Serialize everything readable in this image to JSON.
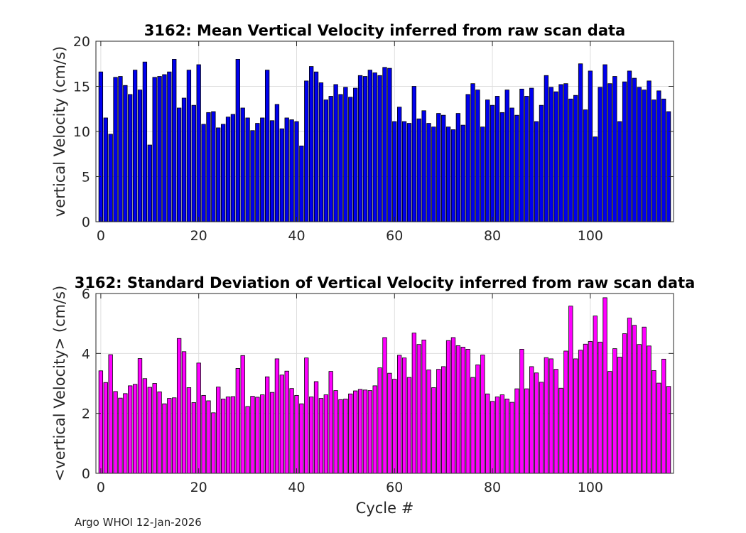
{
  "footer_text": "Argo WHOI 12-Jan-2026",
  "colors": {
    "top_bars": "#0000ee",
    "bottom_bars": "#ff00ff",
    "axis": "#262626",
    "grid": "#dedede"
  },
  "chart_data": [
    {
      "type": "bar",
      "title": "3162: Mean Vertical Velocity inferred from raw scan data",
      "xlabel": "",
      "ylabel": "vertical Velocity (cm/s)",
      "xlim": [
        -1,
        117
      ],
      "ylim": [
        0,
        20
      ],
      "xticks": [
        0,
        20,
        40,
        60,
        80,
        100
      ],
      "yticks": [
        0,
        5,
        10,
        15,
        20
      ],
      "grid": true,
      "x_start": 0,
      "values": [
        16.6,
        11.5,
        9.7,
        16.0,
        16.1,
        15.1,
        14.1,
        16.8,
        14.6,
        17.7,
        8.5,
        16.0,
        16.1,
        16.3,
        16.6,
        18.0,
        12.6,
        13.7,
        16.8,
        12.9,
        17.4,
        10.8,
        12.1,
        12.2,
        10.4,
        10.8,
        11.6,
        11.9,
        18.0,
        12.6,
        11.5,
        10.1,
        10.9,
        11.5,
        16.8,
        11.2,
        13.0,
        10.3,
        11.5,
        11.3,
        11.1,
        8.4,
        15.6,
        17.2,
        16.6,
        15.4,
        13.5,
        13.9,
        15.2,
        14.1,
        14.9,
        13.8,
        14.8,
        16.2,
        16.1,
        16.8,
        16.5,
        16.2,
        17.1,
        17.0,
        11.1,
        12.7,
        11.1,
        10.9,
        15.0,
        11.4,
        12.3,
        10.9,
        10.5,
        12.0,
        11.8,
        10.5,
        10.2,
        12.0,
        10.7,
        14.1,
        15.3,
        14.6,
        10.5,
        13.5,
        12.9,
        13.9,
        12.1,
        14.6,
        12.6,
        11.8,
        14.7,
        13.9,
        14.8,
        11.1,
        12.9,
        16.2,
        14.9,
        14.4,
        15.2,
        15.3,
        13.6,
        14.0,
        17.5,
        12.4,
        16.7,
        9.4,
        14.9,
        17.4,
        15.3,
        16.1,
        11.1,
        15.5,
        16.7,
        15.9,
        14.9,
        14.6,
        15.6,
        13.5,
        14.5,
        13.6,
        12.2
      ]
    },
    {
      "type": "bar",
      "title": "3162: Standard Deviation of Vertical Velocity inferred from raw scan data",
      "xlabel": "Cycle #",
      "ylabel": "<vertical Velocity> (cm/s)",
      "xlim": [
        -1,
        117
      ],
      "ylim": [
        0,
        6
      ],
      "xticks": [
        0,
        20,
        40,
        60,
        80,
        100
      ],
      "yticks": [
        0,
        2,
        4,
        6
      ],
      "grid": true,
      "x_start": 0,
      "values": [
        3.42,
        3.03,
        3.96,
        2.73,
        2.51,
        2.66,
        2.92,
        2.97,
        3.83,
        3.16,
        2.87,
        3.0,
        2.72,
        2.32,
        2.5,
        2.52,
        4.5,
        4.06,
        2.86,
        2.36,
        3.68,
        2.6,
        2.42,
        2.02,
        2.88,
        2.48,
        2.55,
        2.56,
        3.5,
        3.93,
        2.23,
        2.57,
        2.54,
        2.62,
        3.22,
        2.7,
        3.82,
        3.28,
        3.41,
        2.83,
        2.6,
        2.32,
        3.85,
        2.55,
        3.06,
        2.5,
        2.62,
        3.4,
        2.76,
        2.46,
        2.48,
        2.65,
        2.75,
        2.8,
        2.78,
        2.76,
        2.92,
        3.52,
        4.53,
        3.34,
        3.14,
        3.94,
        3.85,
        3.2,
        4.68,
        4.3,
        4.45,
        3.45,
        2.86,
        3.47,
        3.56,
        4.43,
        4.53,
        4.26,
        4.21,
        4.14,
        3.2,
        3.62,
        3.95,
        2.65,
        2.4,
        2.55,
        2.62,
        2.48,
        2.37,
        2.82,
        4.14,
        2.82,
        3.56,
        3.35,
        3.04,
        3.86,
        3.82,
        3.47,
        2.84,
        4.08,
        5.58,
        3.82,
        4.11,
        4.31,
        4.4,
        5.25,
        4.38,
        5.86,
        3.4,
        4.16,
        3.88,
        4.66,
        5.18,
        4.94,
        4.3,
        4.88,
        4.25,
        3.43,
        3.01,
        3.81,
        2.9
      ]
    }
  ]
}
